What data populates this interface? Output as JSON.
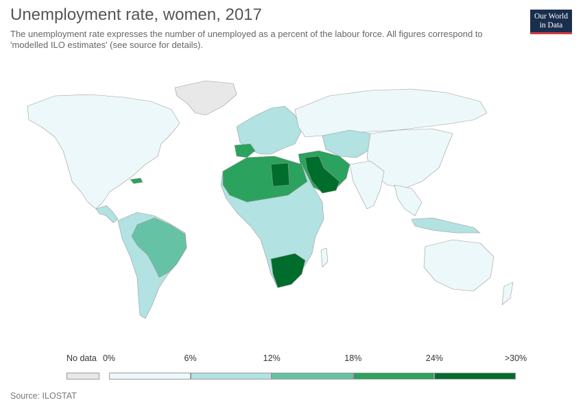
{
  "header": {
    "title": "Unemployment rate, women, 2017",
    "subtitle": "The unemployment rate expresses the number of unemployed as a percent of the labour force. All figures correspond to 'modelled ILO estimates' (see source for details).",
    "logo_line1": "Our World",
    "logo_line2": "in Data"
  },
  "legend": {
    "no_data_label": "No data",
    "no_data_color": "#e8e8e8",
    "ticks": [
      "0%",
      "6%",
      "12%",
      "18%",
      "24%",
      ">30%"
    ],
    "bins": [
      {
        "from": 0,
        "to": 6,
        "color": "#edf8fb"
      },
      {
        "from": 6,
        "to": 12,
        "color": "#b2e2e2"
      },
      {
        "from": 12,
        "to": 18,
        "color": "#66c2a4"
      },
      {
        "from": 18,
        "to": 24,
        "color": "#2ca25f"
      },
      {
        "from": 24,
        "to": 30,
        "color": "#006d2c"
      }
    ]
  },
  "map_colors": {
    "ocean": "#ffffff",
    "border": "#9a9a9a",
    "greenland": "#e8e8e8",
    "north_america": "#edf8fb",
    "south_america": "#b2e2e2",
    "brazil": "#66c2a4",
    "europe": "#b2e2e2",
    "russia": "#edf8fb",
    "china": "#edf8fb",
    "middle_east": "#2ca25f",
    "iraq_saudi": "#006d2c",
    "north_africa": "#2ca25f",
    "libya": "#006d2c",
    "central_africa": "#b2e2e2",
    "southern_africa": "#006d2c",
    "australia": "#edf8fb"
  },
  "source": "Source: ILOSTAT"
}
